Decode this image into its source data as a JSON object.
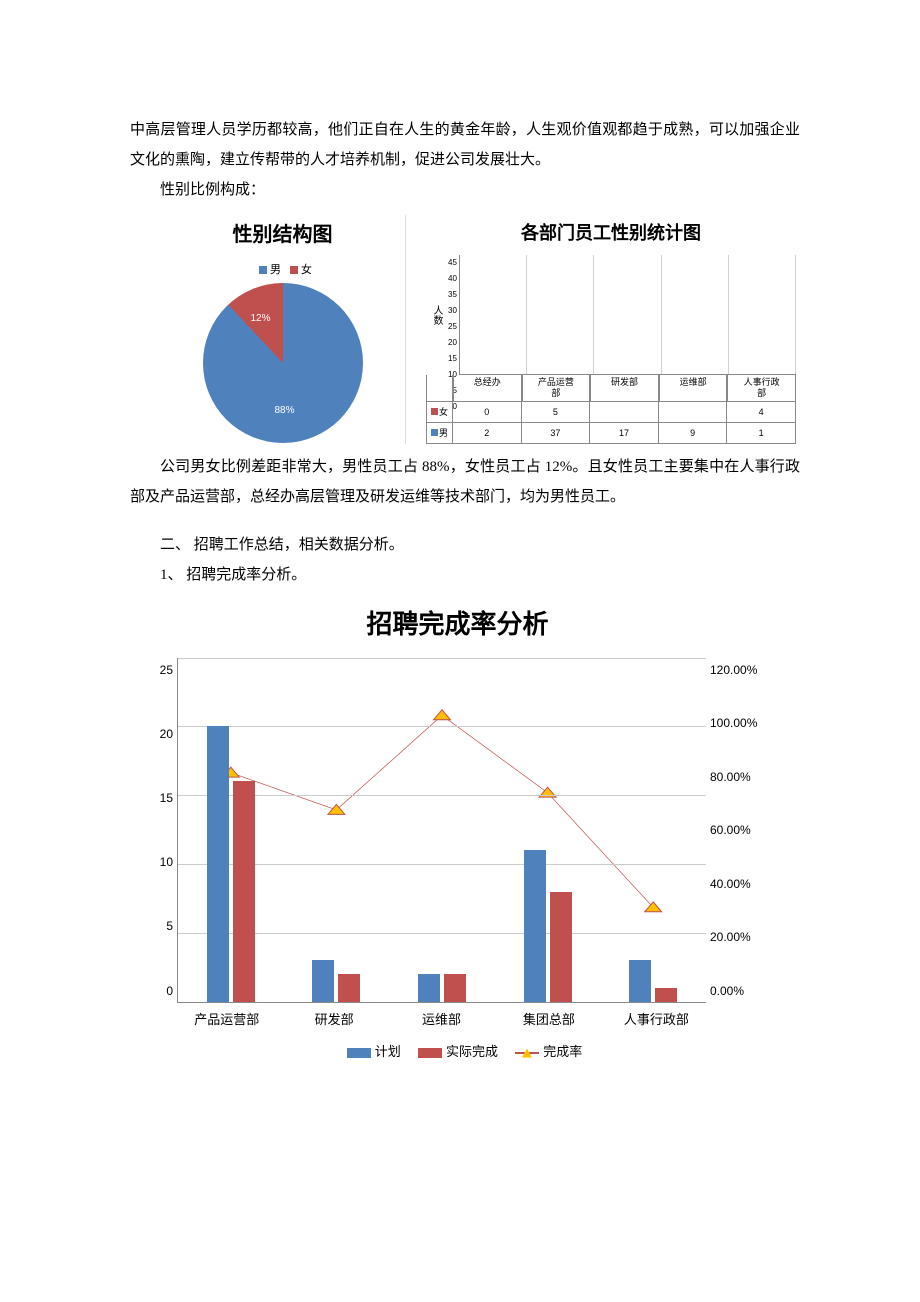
{
  "text": {
    "p1": "中高层管理人员学历都较高，他们正自在人生的黄金年龄，人生观价值观都趋于成熟，可以加强企业文化的熏陶，建立传帮带的人才培养机制，促进公司发展壮大。",
    "p2": "性别比例构成：",
    "p3": "公司男女比例差距非常大，男性员工占 88%，女性员工占 12%。且女性员工主要集中在人事行政部及产品运营部，总经办高层管理及研发运维等技术部门，均为男性员工。",
    "h2": "二、 招聘工作总结，相关数据分析。",
    "h2_1": "1、 招聘完成率分析。"
  },
  "colors": {
    "blue": "#4f81bd",
    "red": "#c0504d",
    "marker": "#ffc000",
    "grid": "#cccccc",
    "axis": "#888888"
  },
  "pie": {
    "title": "性别结构图",
    "legend": {
      "male": "男",
      "female": "女"
    },
    "slices": [
      {
        "label": "男",
        "pct": 88,
        "pctLabel": "88%",
        "color": "#4f81bd"
      },
      {
        "label": "女",
        "pct": 12,
        "pctLabel": "12%",
        "color": "#c0504d"
      }
    ]
  },
  "deptBar": {
    "title": "各部门员工性别统计图",
    "ylabel": "人数",
    "ymax": 45,
    "yticks": [
      45,
      40,
      35,
      30,
      25,
      20,
      15,
      10,
      5,
      0
    ],
    "categories": [
      "总经办",
      "产品运营部",
      "研发部",
      "运维部",
      "人事行政部"
    ],
    "catDisplay": [
      "总经办",
      "产品运营\n部",
      "研发部",
      "运维部",
      "人事行政\n部"
    ],
    "female": {
      "label": "女",
      "color": "#c0504d",
      "values": [
        "0",
        "5",
        "",
        "",
        "4"
      ],
      "num": [
        0,
        5,
        0,
        0,
        4
      ]
    },
    "male": {
      "label": "男",
      "color": "#4f81bd",
      "values": [
        "2",
        "37",
        "17",
        "9",
        "1"
      ],
      "num": [
        2,
        37,
        17,
        9,
        1
      ]
    }
  },
  "combo": {
    "title": "招聘完成率分析",
    "categories": [
      "产品运营部",
      "研发部",
      "运维部",
      "集团总部",
      "人事行政部"
    ],
    "y1": {
      "max": 25,
      "ticks": [
        25,
        20,
        15,
        10,
        5,
        0
      ]
    },
    "y2": {
      "max": 120,
      "ticks": [
        "120.00%",
        "100.00%",
        "80.00%",
        "60.00%",
        "40.00%",
        "20.00%",
        "0.00%"
      ]
    },
    "series": {
      "plan": {
        "label": "计划",
        "color": "#4f81bd",
        "values": [
          20,
          3,
          2,
          11,
          3
        ]
      },
      "actual": {
        "label": "实际完成",
        "color": "#c0504d",
        "values": [
          16,
          2,
          2,
          8,
          1
        ]
      },
      "rate": {
        "label": "完成率",
        "color": "#c0504d",
        "marker": "#ffc000",
        "values": [
          80,
          67,
          100,
          73,
          33
        ]
      }
    }
  }
}
